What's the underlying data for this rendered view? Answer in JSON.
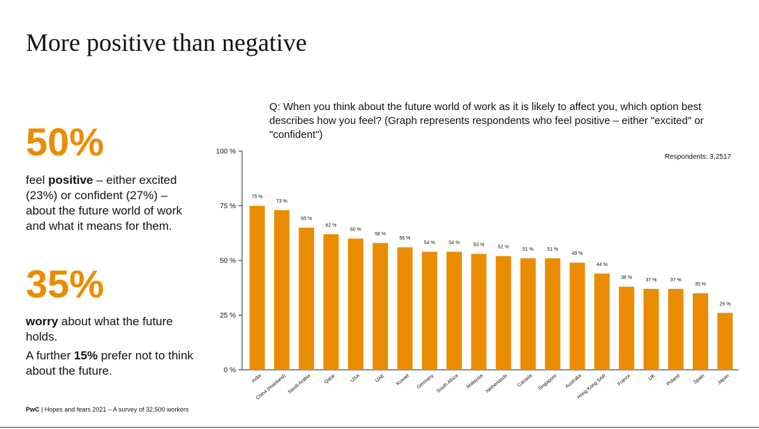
{
  "title": "More positive than negative",
  "stats": {
    "positive": {
      "big": "50%",
      "pre": "feel ",
      "bold": "positive",
      "post": " – either excited (23%) or confident (27%) – about the future world of work and what it means for them."
    },
    "worry": {
      "big": "35%",
      "bold": "worry",
      "post": " about what the future holds."
    },
    "further": {
      "pre": "A further ",
      "bold": "15%",
      "post": " prefer not to think about the future."
    }
  },
  "question": "Q: When you think about the future world of work as it is likely to affect you, which option best describes how you feel? (Graph represents respondents who feel positive – either \"excited\" or \"confident\")",
  "footer": {
    "brand": "PwC",
    "text": " | Hopes and fears 2021 – A survey of 32,500 workers"
  },
  "colors": {
    "accent": "#eb8c00",
    "bar": "#eb8c00"
  },
  "chart_data": {
    "type": "bar",
    "title": "",
    "xlabel": "",
    "ylabel": "",
    "respondents_label": "Respondents: 3,2517",
    "ylim": [
      0,
      100
    ],
    "yticks": [
      0,
      25,
      50,
      75,
      100
    ],
    "ytick_labels": [
      "0 %",
      "25 %",
      "50 %",
      "75 %",
      "100 %"
    ],
    "categories": [
      "India",
      "China (mainland)",
      "Saudi Arabia",
      "Qatar",
      "USA",
      "UAE",
      "Kuwait",
      "Germany",
      "South Africa",
      "Malaysia",
      "Netherlands",
      "Canada",
      "Singapore",
      "Australia",
      "Hong Kong SAR",
      "France",
      "UK",
      "Poland",
      "Spain",
      "Japan"
    ],
    "values": [
      75,
      73,
      65,
      62,
      60,
      58,
      56,
      54,
      54,
      53,
      52,
      51,
      51,
      49,
      44,
      38,
      37,
      37,
      35,
      26
    ],
    "value_labels": [
      "75 %",
      "73 %",
      "65 %",
      "62 %",
      "60 %",
      "58 %",
      "56 %",
      "54 %",
      "54 %",
      "53 %",
      "52 %",
      "51 %",
      "51 %",
      "49 %",
      "44 %",
      "38 %",
      "37 %",
      "37 %",
      "35 %",
      "26 %"
    ]
  }
}
